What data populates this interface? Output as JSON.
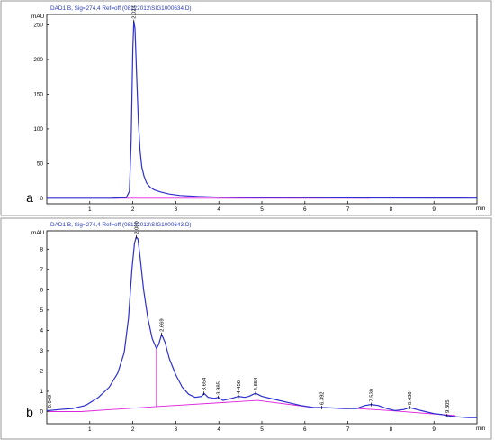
{
  "colors": {
    "trace": "#2d2fcf",
    "baseline": "#dd22dd",
    "header": "#2a3cb4"
  },
  "chart_data": [
    {
      "type": "line",
      "panel": "a",
      "header": "DAD1 B, Sig=274,4 Ref=off (08122012\\SIG1000634.D)",
      "ylabel": "mAU",
      "xlabel": "min",
      "xlim": [
        0,
        10
      ],
      "ylim": [
        -8,
        265
      ],
      "xticks": [
        1,
        2,
        3,
        4,
        5,
        6,
        7,
        8,
        9
      ],
      "yticks": [
        0,
        50,
        100,
        150,
        200,
        250
      ],
      "series": [
        {
          "x": [
            0,
            1.0,
            1.5,
            1.85,
            1.92,
            1.96,
            2.0,
            2.024,
            2.05,
            2.09,
            2.13,
            2.17,
            2.21,
            2.26,
            2.32,
            2.4,
            2.5,
            2.65,
            2.85,
            3.1,
            3.5,
            4.0,
            5.0,
            6.0,
            7.5,
            9.0,
            10.0
          ],
          "y": [
            0,
            0,
            0,
            1,
            10,
            80,
            215,
            255,
            245,
            175,
            110,
            68,
            45,
            32,
            22,
            16,
            12,
            9,
            6,
            4,
            2.5,
            1.5,
            1,
            0.8,
            0.5,
            0.3,
            0.2
          ]
        }
      ],
      "peaks": [
        {
          "rt": 2.024,
          "label": "2.024"
        }
      ],
      "baseline": {
        "x": [
          1.5,
          7.5
        ],
        "y": [
          0,
          0
        ]
      }
    },
    {
      "type": "line",
      "panel": "b",
      "header": "DAD1 B, Sig=274,4 Ref=off (08122012\\SIG1000643.D)",
      "ylabel": "mAU",
      "xlabel": "min",
      "xlim": [
        0,
        10
      ],
      "ylim": [
        -0.6,
        8.9
      ],
      "xticks": [
        1,
        2,
        3,
        4,
        5,
        6,
        7,
        8,
        9
      ],
      "yticks": [
        0,
        1,
        2,
        3,
        4,
        5,
        6,
        7,
        8
      ],
      "series": [
        {
          "x": [
            0,
            0.049,
            0.3,
            0.6,
            0.9,
            1.2,
            1.45,
            1.65,
            1.8,
            1.9,
            1.98,
            2.04,
            2.08,
            2.12,
            2.17,
            2.25,
            2.35,
            2.45,
            2.55,
            2.6,
            2.669,
            2.75,
            2.85,
            3.0,
            3.15,
            3.3,
            3.45,
            3.6,
            3.654,
            3.75,
            3.9,
            3.985,
            4.1,
            4.3,
            4.456,
            4.6,
            4.7,
            4.8,
            4.854,
            5.0,
            5.3,
            5.6,
            5.9,
            6.2,
            6.392,
            6.6,
            6.9,
            7.2,
            7.4,
            7.539,
            7.7,
            7.9,
            8.1,
            8.3,
            8.436,
            8.6,
            8.8,
            9.0,
            9.2,
            9.305,
            9.5,
            9.8,
            10.0
          ],
          "y": [
            0.05,
            0.05,
            0.1,
            0.15,
            0.3,
            0.7,
            1.2,
            1.9,
            2.9,
            4.6,
            7.0,
            8.3,
            8.6,
            8.5,
            7.6,
            6.0,
            4.6,
            3.6,
            3.1,
            3.3,
            3.8,
            3.4,
            2.6,
            1.8,
            1.2,
            0.85,
            0.7,
            0.75,
            0.9,
            0.7,
            0.65,
            0.7,
            0.55,
            0.65,
            0.75,
            0.7,
            0.75,
            0.85,
            0.9,
            0.75,
            0.6,
            0.45,
            0.3,
            0.2,
            0.2,
            0.18,
            0.15,
            0.15,
            0.3,
            0.35,
            0.3,
            0.15,
            0.05,
            0.1,
            0.2,
            0.1,
            0.0,
            -0.1,
            -0.15,
            -0.2,
            -0.25,
            -0.3,
            -0.3
          ]
        }
      ],
      "peaks": [
        {
          "rt": 0.049,
          "label": "0.049"
        },
        {
          "rt": 2.08,
          "label": "2.080"
        },
        {
          "rt": 2.669,
          "label": "2.669"
        },
        {
          "rt": 3.654,
          "label": "3.654"
        },
        {
          "rt": 3.985,
          "label": "3.985"
        },
        {
          "rt": 4.456,
          "label": "4.456"
        },
        {
          "rt": 4.854,
          "label": "4.854"
        },
        {
          "rt": 6.392,
          "label": "6.392"
        },
        {
          "rt": 7.539,
          "label": "7.539"
        },
        {
          "rt": 8.436,
          "label": "8.436"
        },
        {
          "rt": 9.305,
          "label": "9.305"
        }
      ],
      "baseline": {
        "x": [
          0.05,
          0.8,
          2.55,
          4.9,
          6.2,
          7.2,
          8.0,
          9.5
        ],
        "y": [
          0.0,
          0.0,
          0.25,
          0.55,
          0.2,
          0.15,
          0.05,
          -0.2
        ]
      },
      "drop_line": {
        "x": 2.55
      }
    }
  ]
}
